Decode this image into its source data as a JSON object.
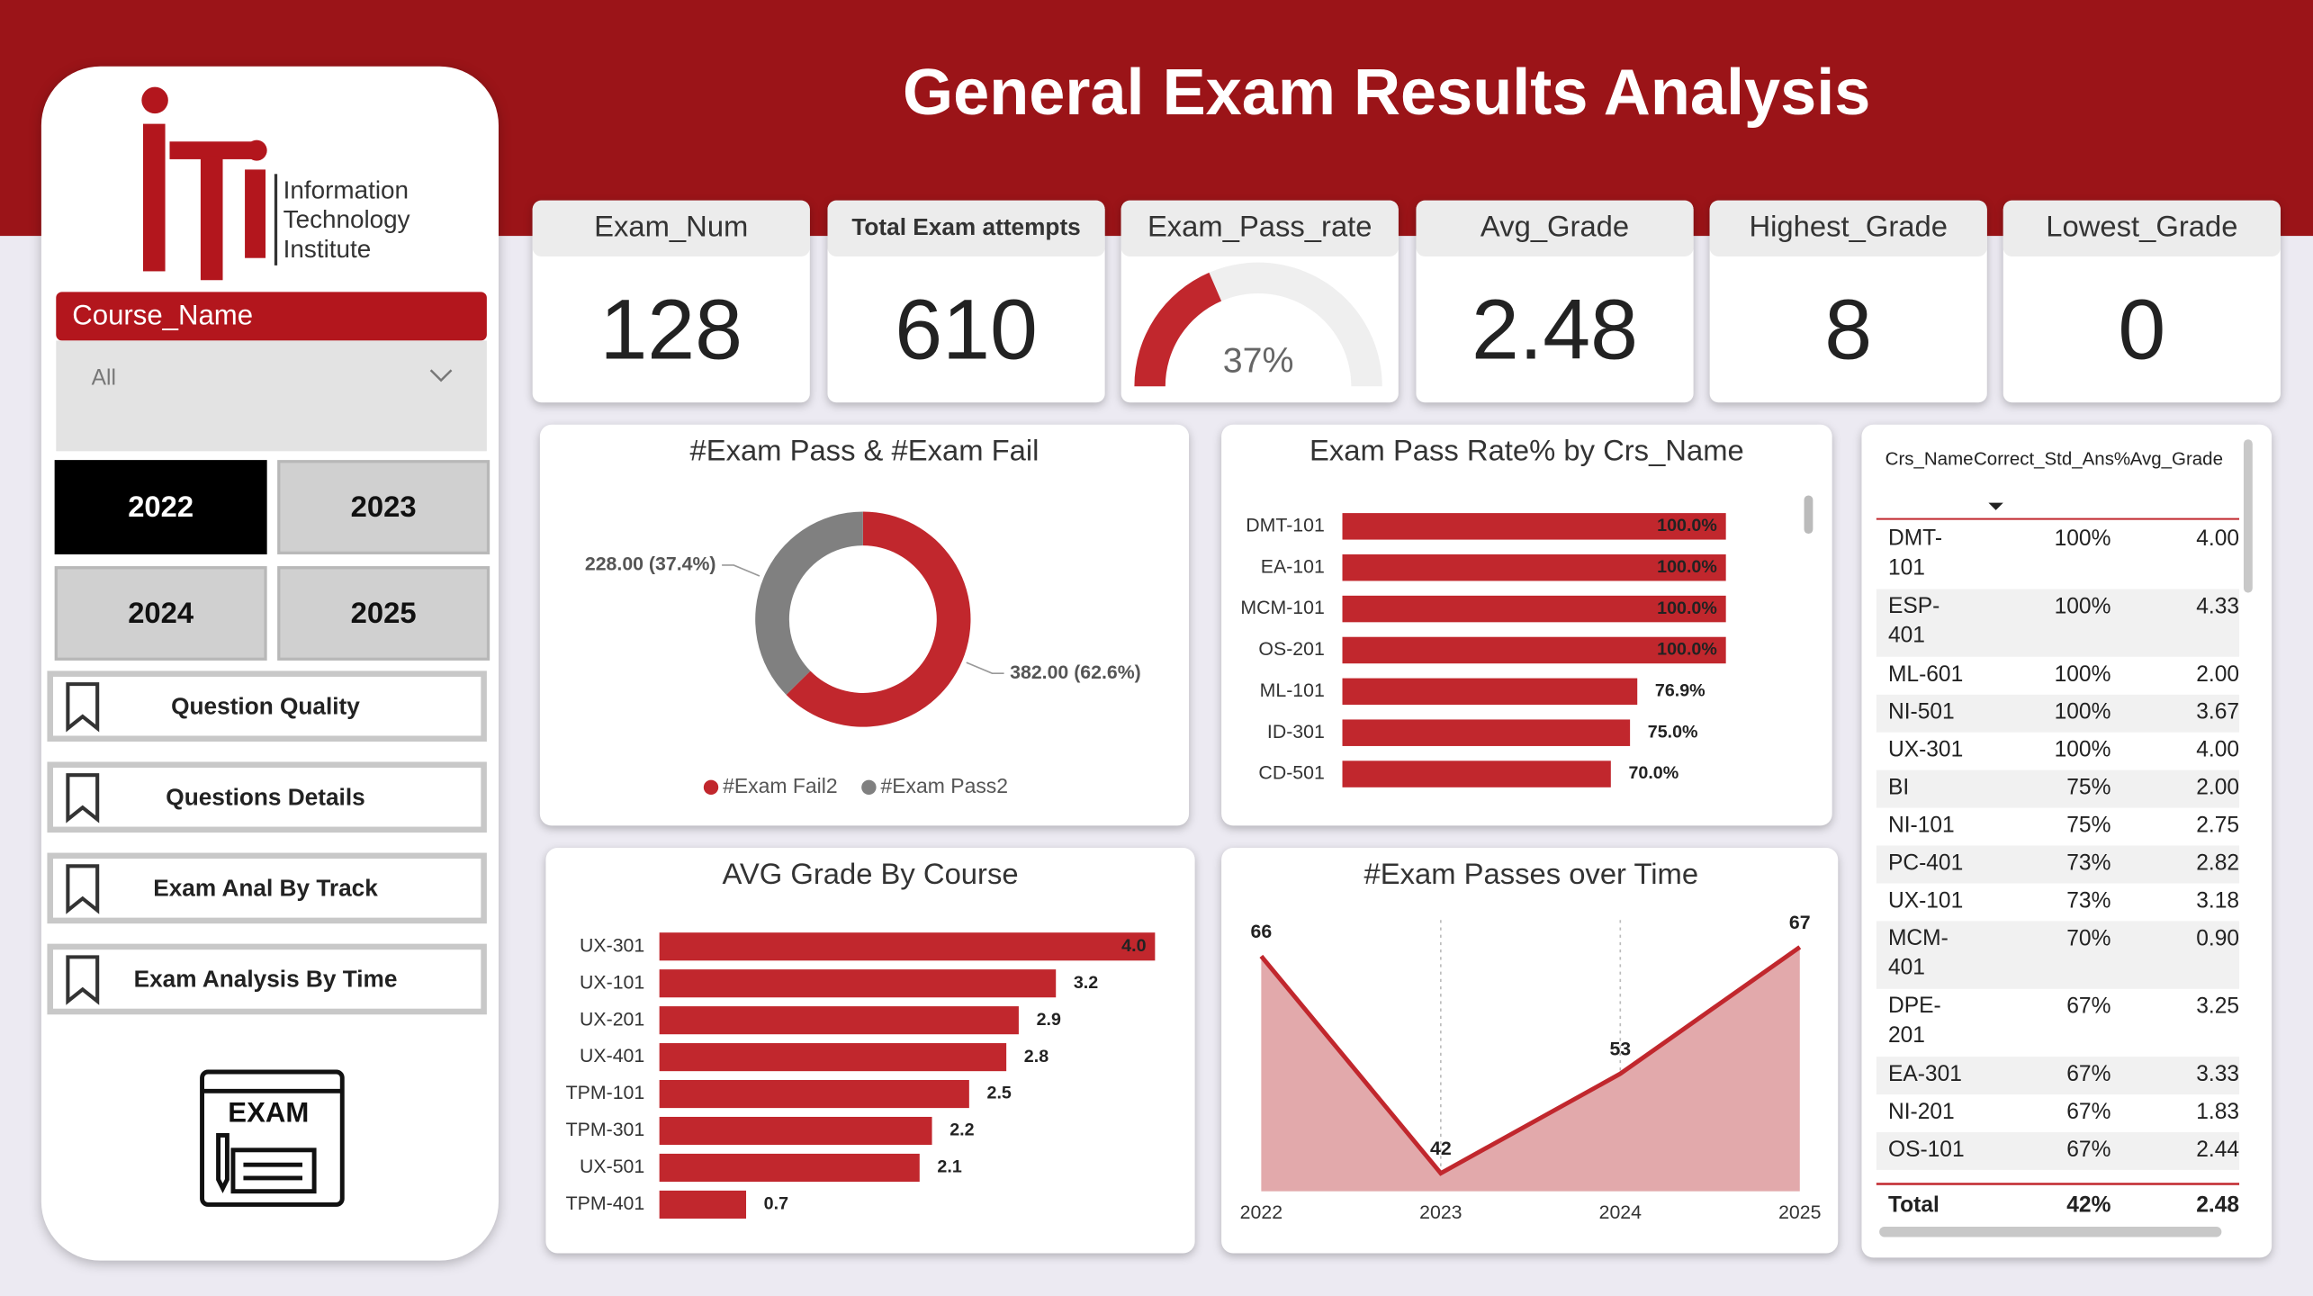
{
  "header": {
    "title": "General Exam Results Analysis"
  },
  "sidebar": {
    "logo_lines": [
      "Information",
      "Technology",
      "Institute"
    ],
    "slicer": {
      "label": "Course_Name",
      "value": "All"
    },
    "years": [
      "2022",
      "2023",
      "2024",
      "2025"
    ],
    "nav": [
      "Question Quality",
      "Questions Details",
      "Exam Anal By Track",
      "Exam Analysis By Time"
    ],
    "icon_label": "EXAM"
  },
  "kpis": [
    {
      "label": "Exam_Num",
      "value": 128
    },
    {
      "label": "Total Exam attempts",
      "value": 610
    },
    {
      "label": "Exam_Pass_rate",
      "value": 37,
      "value_label": "37%",
      "lim": [
        0,
        100
      ]
    },
    {
      "label": "Avg_Grade",
      "value": 2.48
    },
    {
      "label": "Highest_Grade",
      "value": 8
    },
    {
      "label": "Lowest_Grade",
      "value": 0
    }
  ],
  "chart_data": [
    {
      "type": "pie",
      "title": "#Exam Pass & #Exam Fail",
      "categories": [
        "#Exam Fail2",
        "#Exam Pass2"
      ],
      "values": [
        382,
        228
      ],
      "value_labels": [
        "382.00 (62.6%)",
        "228.00 (37.4%)"
      ],
      "colors": [
        "#c1272d",
        "#808080"
      ],
      "legend": "bottom"
    },
    {
      "type": "bar",
      "title": "Exam Pass Rate% by Crs_Name",
      "categories": [
        "DMT-101",
        "EA-101",
        "MCM-101",
        "OS-201",
        "ML-101",
        "ID-301",
        "CD-501"
      ],
      "values": [
        100,
        100,
        100,
        100,
        76.9,
        75,
        70
      ],
      "value_labels": [
        "100.0%",
        "100.0%",
        "100.0%",
        "100.0%",
        "76.9%",
        "75.0%",
        "70.0%"
      ],
      "color": "#c1272d",
      "xlim": [
        0,
        100
      ]
    },
    {
      "type": "bar",
      "title": "AVG Grade By Course",
      "categories": [
        "UX-301",
        "UX-101",
        "UX-201",
        "UX-401",
        "TPM-101",
        "TPM-301",
        "UX-501",
        "TPM-401"
      ],
      "values": [
        4.0,
        3.2,
        2.9,
        2.8,
        2.5,
        2.2,
        2.1,
        0.7
      ],
      "value_labels": [
        "4.0",
        "3.2",
        "2.9",
        "2.8",
        "2.5",
        "2.2",
        "2.1",
        "0.7"
      ],
      "color": "#c1272d",
      "xlim": [
        0,
        4
      ]
    },
    {
      "type": "line",
      "title": "#Exam Passes over Time",
      "x": [
        "2022",
        "2023",
        "2024",
        "2025"
      ],
      "values": [
        66,
        42,
        53,
        67
      ],
      "color": "#c1272d",
      "area_color": "#e2a9ab",
      "ylim": [
        40,
        70
      ],
      "grid": true
    }
  ],
  "table": {
    "columns": [
      "Crs_Name",
      "Correct_Std_Ans%",
      "Avg_Grade"
    ],
    "rows": [
      [
        "DMT-101",
        "100%",
        "4.00"
      ],
      [
        "ESP-401",
        "100%",
        "4.33"
      ],
      [
        "ML-601",
        "100%",
        "2.00"
      ],
      [
        "NI-501",
        "100%",
        "3.67"
      ],
      [
        "UX-301",
        "100%",
        "4.00"
      ],
      [
        "BI",
        "75%",
        "2.00"
      ],
      [
        "NI-101",
        "75%",
        "2.75"
      ],
      [
        "PC-401",
        "73%",
        "2.82"
      ],
      [
        "UX-101",
        "73%",
        "3.18"
      ],
      [
        "MCM-401",
        "70%",
        "0.90"
      ],
      [
        "DPE-201",
        "67%",
        "3.25"
      ],
      [
        "EA-301",
        "67%",
        "3.33"
      ],
      [
        "NI-201",
        "67%",
        "1.83"
      ],
      [
        "OS-101",
        "67%",
        "2.44"
      ]
    ],
    "total": [
      "Total",
      "42%",
      "2.48"
    ]
  }
}
